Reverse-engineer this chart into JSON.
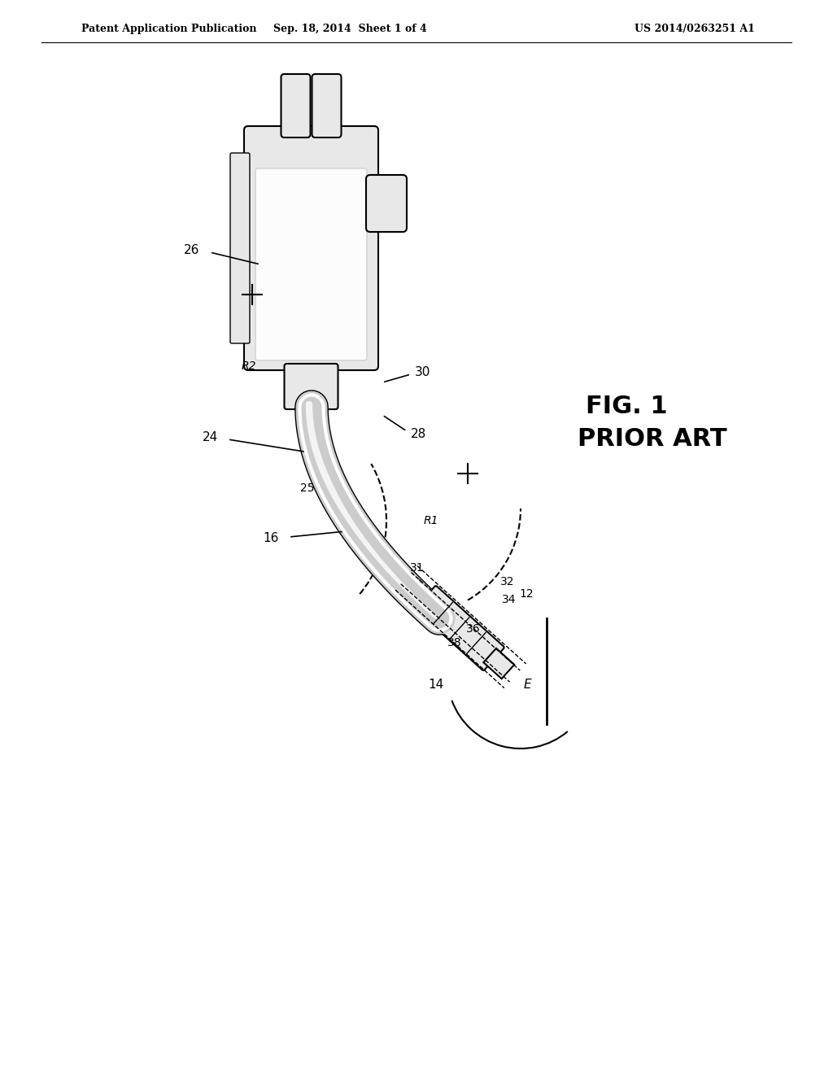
{
  "bg_color": "#ffffff",
  "header_left": "Patent Application Publication",
  "header_center": "Sep. 18, 2014  Sheet 1 of 4",
  "header_right": "US 2014/0263251 A1",
  "fig_label": "FIG. 1",
  "fig_sublabel": "PRIOR ART",
  "line_color": "#000000",
  "dashed_color": "#555555",
  "light_gray": "#cccccc",
  "lighter_gray": "#e8e8e8"
}
